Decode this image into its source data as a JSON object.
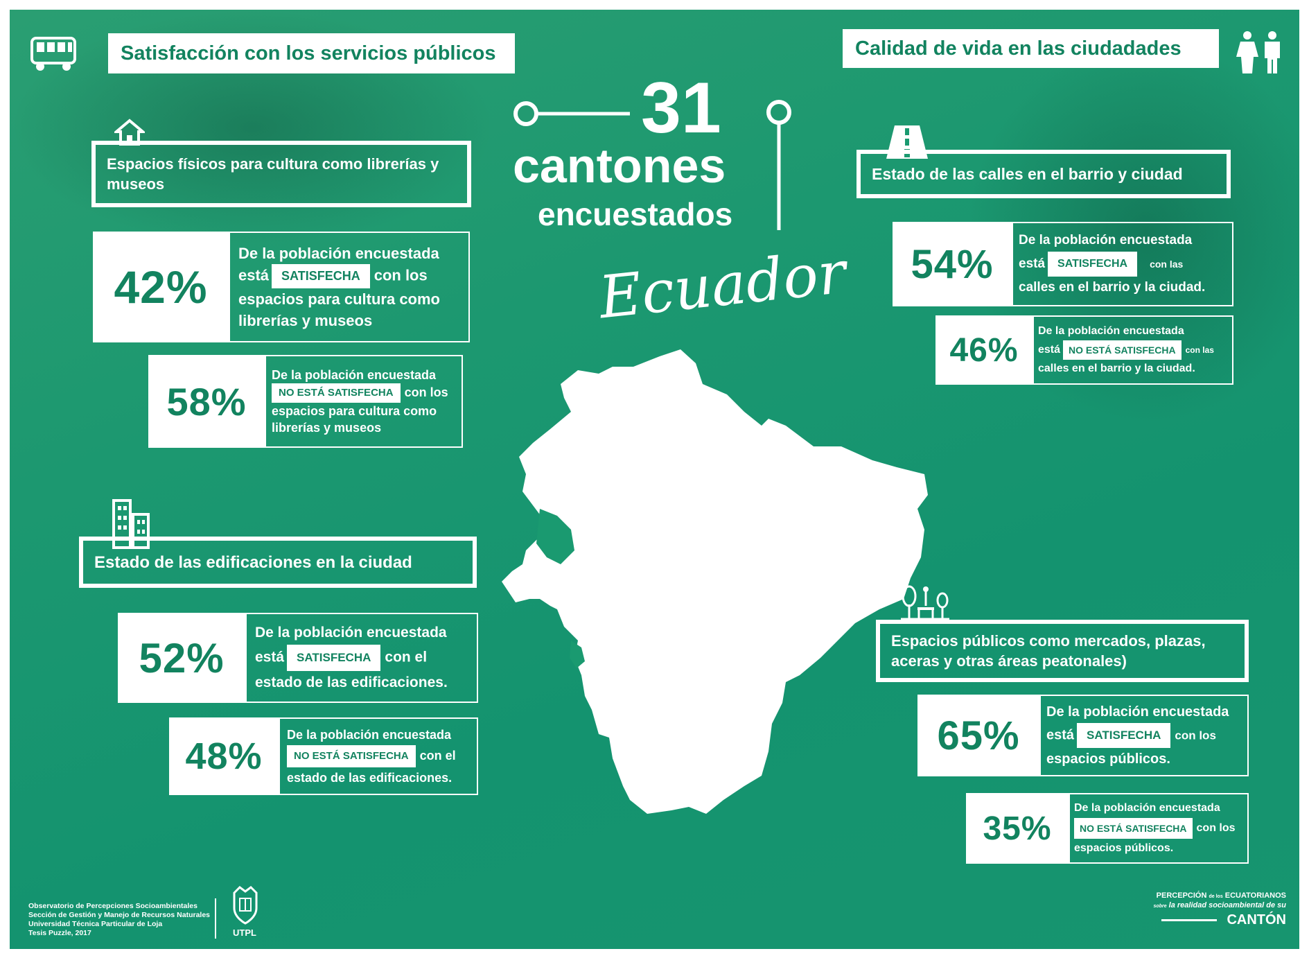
{
  "top_left": {
    "title": "Satisfacción con los servicios públicos",
    "icon": "bus-icon"
  },
  "top_right": {
    "title": "Calidad de vida en las ciudadades",
    "icon": "people-icon"
  },
  "center": {
    "number": "31",
    "line1": "cantones",
    "line2": "encuestados",
    "country": "Ecuador"
  },
  "sections": {
    "cultura": {
      "icon": "house-icon",
      "header": "Espacios físicos para cultura como librerías y museos",
      "satisfied": {
        "pct": "42%",
        "lead": "De la población encuestada",
        "pre": "está",
        "tag": "SATISFECHA",
        "post": "con los",
        "tail": "espacios para cultura como librerías y museos"
      },
      "unsatisfied": {
        "pct": "58%",
        "lead": "De la población encuestada",
        "tag": "NO ESTÁ SATISFECHA",
        "post": "con los",
        "tail": "espacios para cultura como librerías y museos"
      }
    },
    "edificaciones": {
      "icon": "buildings-icon",
      "header": "Estado de las edificaciones en la ciudad",
      "satisfied": {
        "pct": "52%",
        "lead": "De la población encuestada",
        "pre": "está",
        "tag": "SATISFECHA",
        "post": "con el",
        "tail": "estado de las edificaciones."
      },
      "unsatisfied": {
        "pct": "48%",
        "lead": "De la población encuestada",
        "tag": "NO ESTÁ SATISFECHA",
        "post": "con el",
        "tail": "estado de las edificaciones."
      }
    },
    "calles": {
      "icon": "road-icon",
      "header": "Estado de las calles en el barrio y ciudad",
      "satisfied": {
        "pct": "54%",
        "lead": "De la población encuestada",
        "pre": "está",
        "tag": "SATISFECHA",
        "post": "con las",
        "tail": "calles en el barrio y la ciudad."
      },
      "unsatisfied": {
        "pct": "46%",
        "lead": "De la población encuestada",
        "pre": "está",
        "tag": "NO ESTÁ SATISFECHA",
        "post": "con las",
        "tail": "calles en el barrio y la ciudad."
      }
    },
    "espacios": {
      "icon": "park-icon",
      "header": "Espacios públicos como mercados, plazas, aceras y otras áreas peatonales)",
      "satisfied": {
        "pct": "65%",
        "lead": "De la población encuestada",
        "pre": "está",
        "tag": "SATISFECHA",
        "post": "con los",
        "tail": "espacios públicos."
      },
      "unsatisfied": {
        "pct": "35%",
        "lead": "De la población encuestada",
        "tag": "NO ESTÁ SATISFECHA",
        "post": "con los",
        "tail": "espacios públicos."
      }
    }
  },
  "footer": {
    "lines": [
      "Observatorio de Percepciones Socioambientales",
      "Sección de Gestión y Manejo de Recursos Naturales",
      "Universidad Técnica Particular de Loja",
      "Tesis Puzzle, 2017"
    ],
    "logo_label": "UTPL",
    "brand_line1a": "PERCEPCIÓN",
    "brand_line1b": "de los",
    "brand_line1c": "ECUATORIANOS",
    "brand_line2a": "sobre",
    "brand_line2b": "la realidad socioambiental de su",
    "brand_line3": "CANTÓN"
  },
  "colors": {
    "background": "#1a9a70",
    "accent_text": "#12835f",
    "foreground": "#ffffff"
  }
}
